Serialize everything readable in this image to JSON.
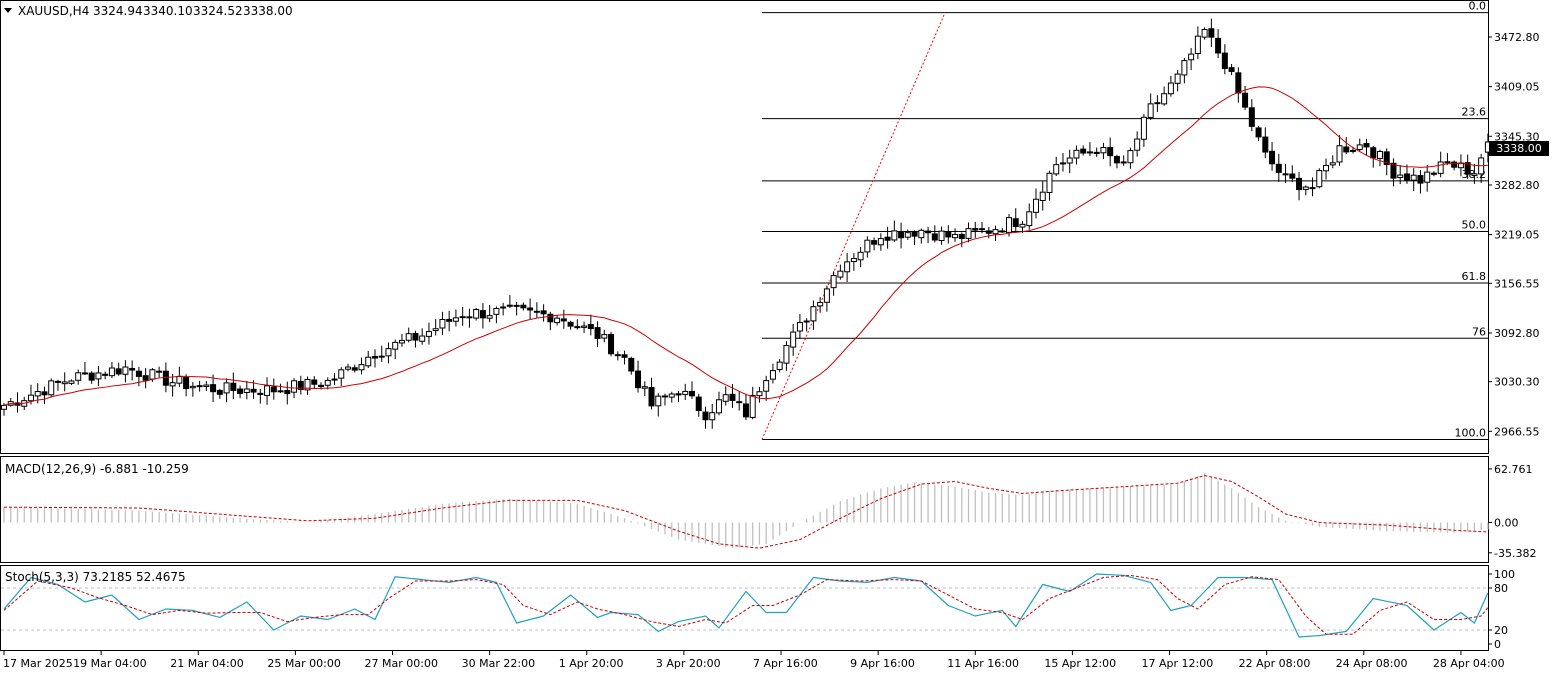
{
  "chart_data": [
    {
      "type": "candlestick",
      "panel": "price",
      "symbol_label": "XAUUSD,H4",
      "ohlc_header": [
        "3324.94",
        "3340.10",
        "3324.52",
        "3338.00"
      ],
      "current_price_label": "3338.00",
      "ylim": [
        2940,
        3510
      ],
      "y_ticks": [
        "3472.80",
        "3409.05",
        "3345.30",
        "3282.80",
        "3219.05",
        "3156.55",
        "3092.80",
        "3030.30",
        "2966.55"
      ],
      "x_ticks": [
        "17 Mar 2025",
        "19 Mar 04:00",
        "21 Mar 04:00",
        "25 Mar 00:00",
        "27 Mar 00:00",
        "30 Mar 22:00",
        "1 Apr 20:00",
        "3 Apr 20:00",
        "7 Apr 16:00",
        "9 Apr 16:00",
        "11 Apr 16:00",
        "15 Apr 12:00",
        "17 Apr 12:00",
        "22 Apr 08:00",
        "24 Apr 08:00",
        "28 Apr 04:00"
      ],
      "close_waypoints": [
        [
          0,
          3000
        ],
        [
          10,
          3035
        ],
        [
          18,
          3048
        ],
        [
          25,
          3030
        ],
        [
          32,
          3020
        ],
        [
          40,
          3020
        ],
        [
          48,
          3030
        ],
        [
          55,
          3068
        ],
        [
          62,
          3090
        ],
        [
          68,
          3118
        ],
        [
          75,
          3120
        ],
        [
          82,
          3115
        ],
        [
          88,
          3090
        ],
        [
          92,
          3060
        ],
        [
          96,
          3000
        ],
        [
          100,
          3020
        ],
        [
          104,
          2990
        ],
        [
          107,
          3010
        ],
        [
          110,
          2990
        ],
        [
          113,
          3040
        ],
        [
          118,
          3100
        ],
        [
          124,
          3180
        ],
        [
          130,
          3220
        ],
        [
          136,
          3225
        ],
        [
          141,
          3215
        ],
        [
          146,
          3225
        ],
        [
          151,
          3240
        ],
        [
          156,
          3310
        ],
        [
          162,
          3330
        ],
        [
          166,
          3305
        ],
        [
          170,
          3380
        ],
        [
          174,
          3420
        ],
        [
          178,
          3480
        ],
        [
          181,
          3440
        ],
        [
          184,
          3380
        ],
        [
          187,
          3320
        ],
        [
          190,
          3290
        ],
        [
          194,
          3280
        ],
        [
          198,
          3330
        ],
        [
          202,
          3335
        ],
        [
          206,
          3300
        ],
        [
          210,
          3290
        ],
        [
          214,
          3310
        ],
        [
          218,
          3300
        ],
        [
          220,
          3338
        ]
      ],
      "moving_average": {
        "color": "#cc0000"
      },
      "fibonacci": {
        "levels": [
          {
            "label": "0.0",
            "price": 3504
          },
          {
            "label": "23.6",
            "price": 3368
          },
          {
            "label": "38.2",
            "price": 3288
          },
          {
            "label": "50.0",
            "price": 3223
          },
          {
            "label": "61.8",
            "price": 3157
          },
          {
            "label": "76",
            "price": 3086
          },
          {
            "label": "100.0",
            "price": 2956
          }
        ],
        "color": "#000000",
        "trend_line_color": "#ff0000"
      },
      "up_color": "#ffffff",
      "down_color": "#000000"
    },
    {
      "type": "bar",
      "panel": "macd",
      "label": "MACD(12,26,9) -6.881 -10.259",
      "ylim": [
        -45,
        72
      ],
      "y_ticks": [
        "62.761",
        "0.00",
        "-35.382"
      ],
      "histogram_waypoints": [
        [
          0,
          18
        ],
        [
          20,
          14
        ],
        [
          35,
          5
        ],
        [
          45,
          0
        ],
        [
          55,
          10
        ],
        [
          65,
          22
        ],
        [
          75,
          28
        ],
        [
          85,
          22
        ],
        [
          92,
          5
        ],
        [
          100,
          -20
        ],
        [
          108,
          -30
        ],
        [
          113,
          -25
        ],
        [
          118,
          0
        ],
        [
          124,
          25
        ],
        [
          130,
          40
        ],
        [
          135,
          47
        ],
        [
          141,
          42
        ],
        [
          146,
          35
        ],
        [
          151,
          32
        ],
        [
          156,
          38
        ],
        [
          166,
          42
        ],
        [
          174,
          45
        ],
        [
          178,
          58
        ],
        [
          182,
          40
        ],
        [
          186,
          18
        ],
        [
          190,
          2
        ],
        [
          195,
          -5
        ],
        [
          205,
          -10
        ],
        [
          215,
          -12
        ],
        [
          220,
          -8
        ]
      ],
      "signal_waypoints": [
        [
          0,
          18
        ],
        [
          20,
          17
        ],
        [
          35,
          8
        ],
        [
          45,
          2
        ],
        [
          55,
          5
        ],
        [
          65,
          17
        ],
        [
          75,
          26
        ],
        [
          85,
          26
        ],
        [
          92,
          14
        ],
        [
          100,
          -10
        ],
        [
          106,
          -25
        ],
        [
          112,
          -30
        ],
        [
          118,
          -20
        ],
        [
          124,
          5
        ],
        [
          130,
          28
        ],
        [
          136,
          45
        ],
        [
          141,
          48
        ],
        [
          146,
          40
        ],
        [
          151,
          34
        ],
        [
          156,
          37
        ],
        [
          166,
          42
        ],
        [
          174,
          46
        ],
        [
          178,
          55
        ],
        [
          182,
          48
        ],
        [
          186,
          30
        ],
        [
          190,
          10
        ],
        [
          195,
          0
        ],
        [
          205,
          -3
        ],
        [
          215,
          -9
        ],
        [
          220,
          -11
        ]
      ],
      "histogram_color": "#c0c0c0",
      "signal_color": "#cc0000"
    },
    {
      "type": "line",
      "panel": "stochastic",
      "label": "Stoch(5,3,3) 73.2185 52.4675",
      "ylim": [
        0,
        100
      ],
      "y_ticks": [
        "100",
        "80",
        "20",
        "0"
      ],
      "main_waypoints": [
        [
          0,
          50
        ],
        [
          4,
          95
        ],
        [
          8,
          85
        ],
        [
          12,
          60
        ],
        [
          16,
          70
        ],
        [
          20,
          35
        ],
        [
          24,
          50
        ],
        [
          28,
          48
        ],
        [
          32,
          38
        ],
        [
          36,
          60
        ],
        [
          40,
          20
        ],
        [
          44,
          40
        ],
        [
          48,
          35
        ],
        [
          52,
          50
        ],
        [
          55,
          35
        ],
        [
          58,
          96
        ],
        [
          62,
          92
        ],
        [
          66,
          88
        ],
        [
          70,
          95
        ],
        [
          73,
          88
        ],
        [
          76,
          30
        ],
        [
          80,
          40
        ],
        [
          84,
          70
        ],
        [
          88,
          38
        ],
        [
          90,
          45
        ],
        [
          94,
          42
        ],
        [
          97,
          18
        ],
        [
          100,
          32
        ],
        [
          104,
          40
        ],
        [
          106,
          23
        ],
        [
          110,
          75
        ],
        [
          113,
          45
        ],
        [
          116,
          45
        ],
        [
          120,
          95
        ],
        [
          124,
          90
        ],
        [
          128,
          88
        ],
        [
          132,
          95
        ],
        [
          136,
          90
        ],
        [
          140,
          55
        ],
        [
          144,
          40
        ],
        [
          148,
          48
        ],
        [
          150,
          25
        ],
        [
          154,
          85
        ],
        [
          158,
          75
        ],
        [
          162,
          100
        ],
        [
          166,
          98
        ],
        [
          170,
          88
        ],
        [
          173,
          48
        ],
        [
          176,
          55
        ],
        [
          180,
          95
        ],
        [
          184,
          95
        ],
        [
          188,
          92
        ],
        [
          192,
          10
        ],
        [
          195,
          12
        ],
        [
          199,
          18
        ],
        [
          203,
          65
        ],
        [
          208,
          55
        ],
        [
          212,
          20
        ],
        [
          216,
          45
        ],
        [
          218,
          30
        ],
        [
          220,
          73
        ]
      ],
      "signal_waypoints": [
        [
          0,
          48
        ],
        [
          5,
          90
        ],
        [
          10,
          80
        ],
        [
          14,
          66
        ],
        [
          18,
          55
        ],
        [
          22,
          42
        ],
        [
          26,
          48
        ],
        [
          30,
          44
        ],
        [
          34,
          45
        ],
        [
          38,
          45
        ],
        [
          42,
          32
        ],
        [
          46,
          38
        ],
        [
          50,
          42
        ],
        [
          54,
          42
        ],
        [
          57,
          65
        ],
        [
          61,
          90
        ],
        [
          66,
          90
        ],
        [
          70,
          92
        ],
        [
          74,
          85
        ],
        [
          77,
          55
        ],
        [
          81,
          42
        ],
        [
          85,
          60
        ],
        [
          88,
          50
        ],
        [
          92,
          42
        ],
        [
          96,
          32
        ],
        [
          100,
          25
        ],
        [
          104,
          35
        ],
        [
          107,
          30
        ],
        [
          111,
          55
        ],
        [
          114,
          55
        ],
        [
          118,
          70
        ],
        [
          122,
          92
        ],
        [
          127,
          90
        ],
        [
          132,
          92
        ],
        [
          136,
          90
        ],
        [
          140,
          70
        ],
        [
          144,
          50
        ],
        [
          148,
          45
        ],
        [
          151,
          35
        ],
        [
          155,
          65
        ],
        [
          159,
          80
        ],
        [
          163,
          95
        ],
        [
          167,
          98
        ],
        [
          171,
          92
        ],
        [
          174,
          65
        ],
        [
          177,
          50
        ],
        [
          181,
          85
        ],
        [
          185,
          96
        ],
        [
          189,
          92
        ],
        [
          193,
          40
        ],
        [
          196,
          14
        ],
        [
          200,
          14
        ],
        [
          204,
          48
        ],
        [
          208,
          60
        ],
        [
          212,
          35
        ],
        [
          216,
          35
        ],
        [
          219,
          40
        ],
        [
          220,
          52
        ]
      ],
      "main_color": "#20a0c0",
      "signal_color": "#cc0000",
      "levels": [
        80,
        20
      ]
    }
  ]
}
